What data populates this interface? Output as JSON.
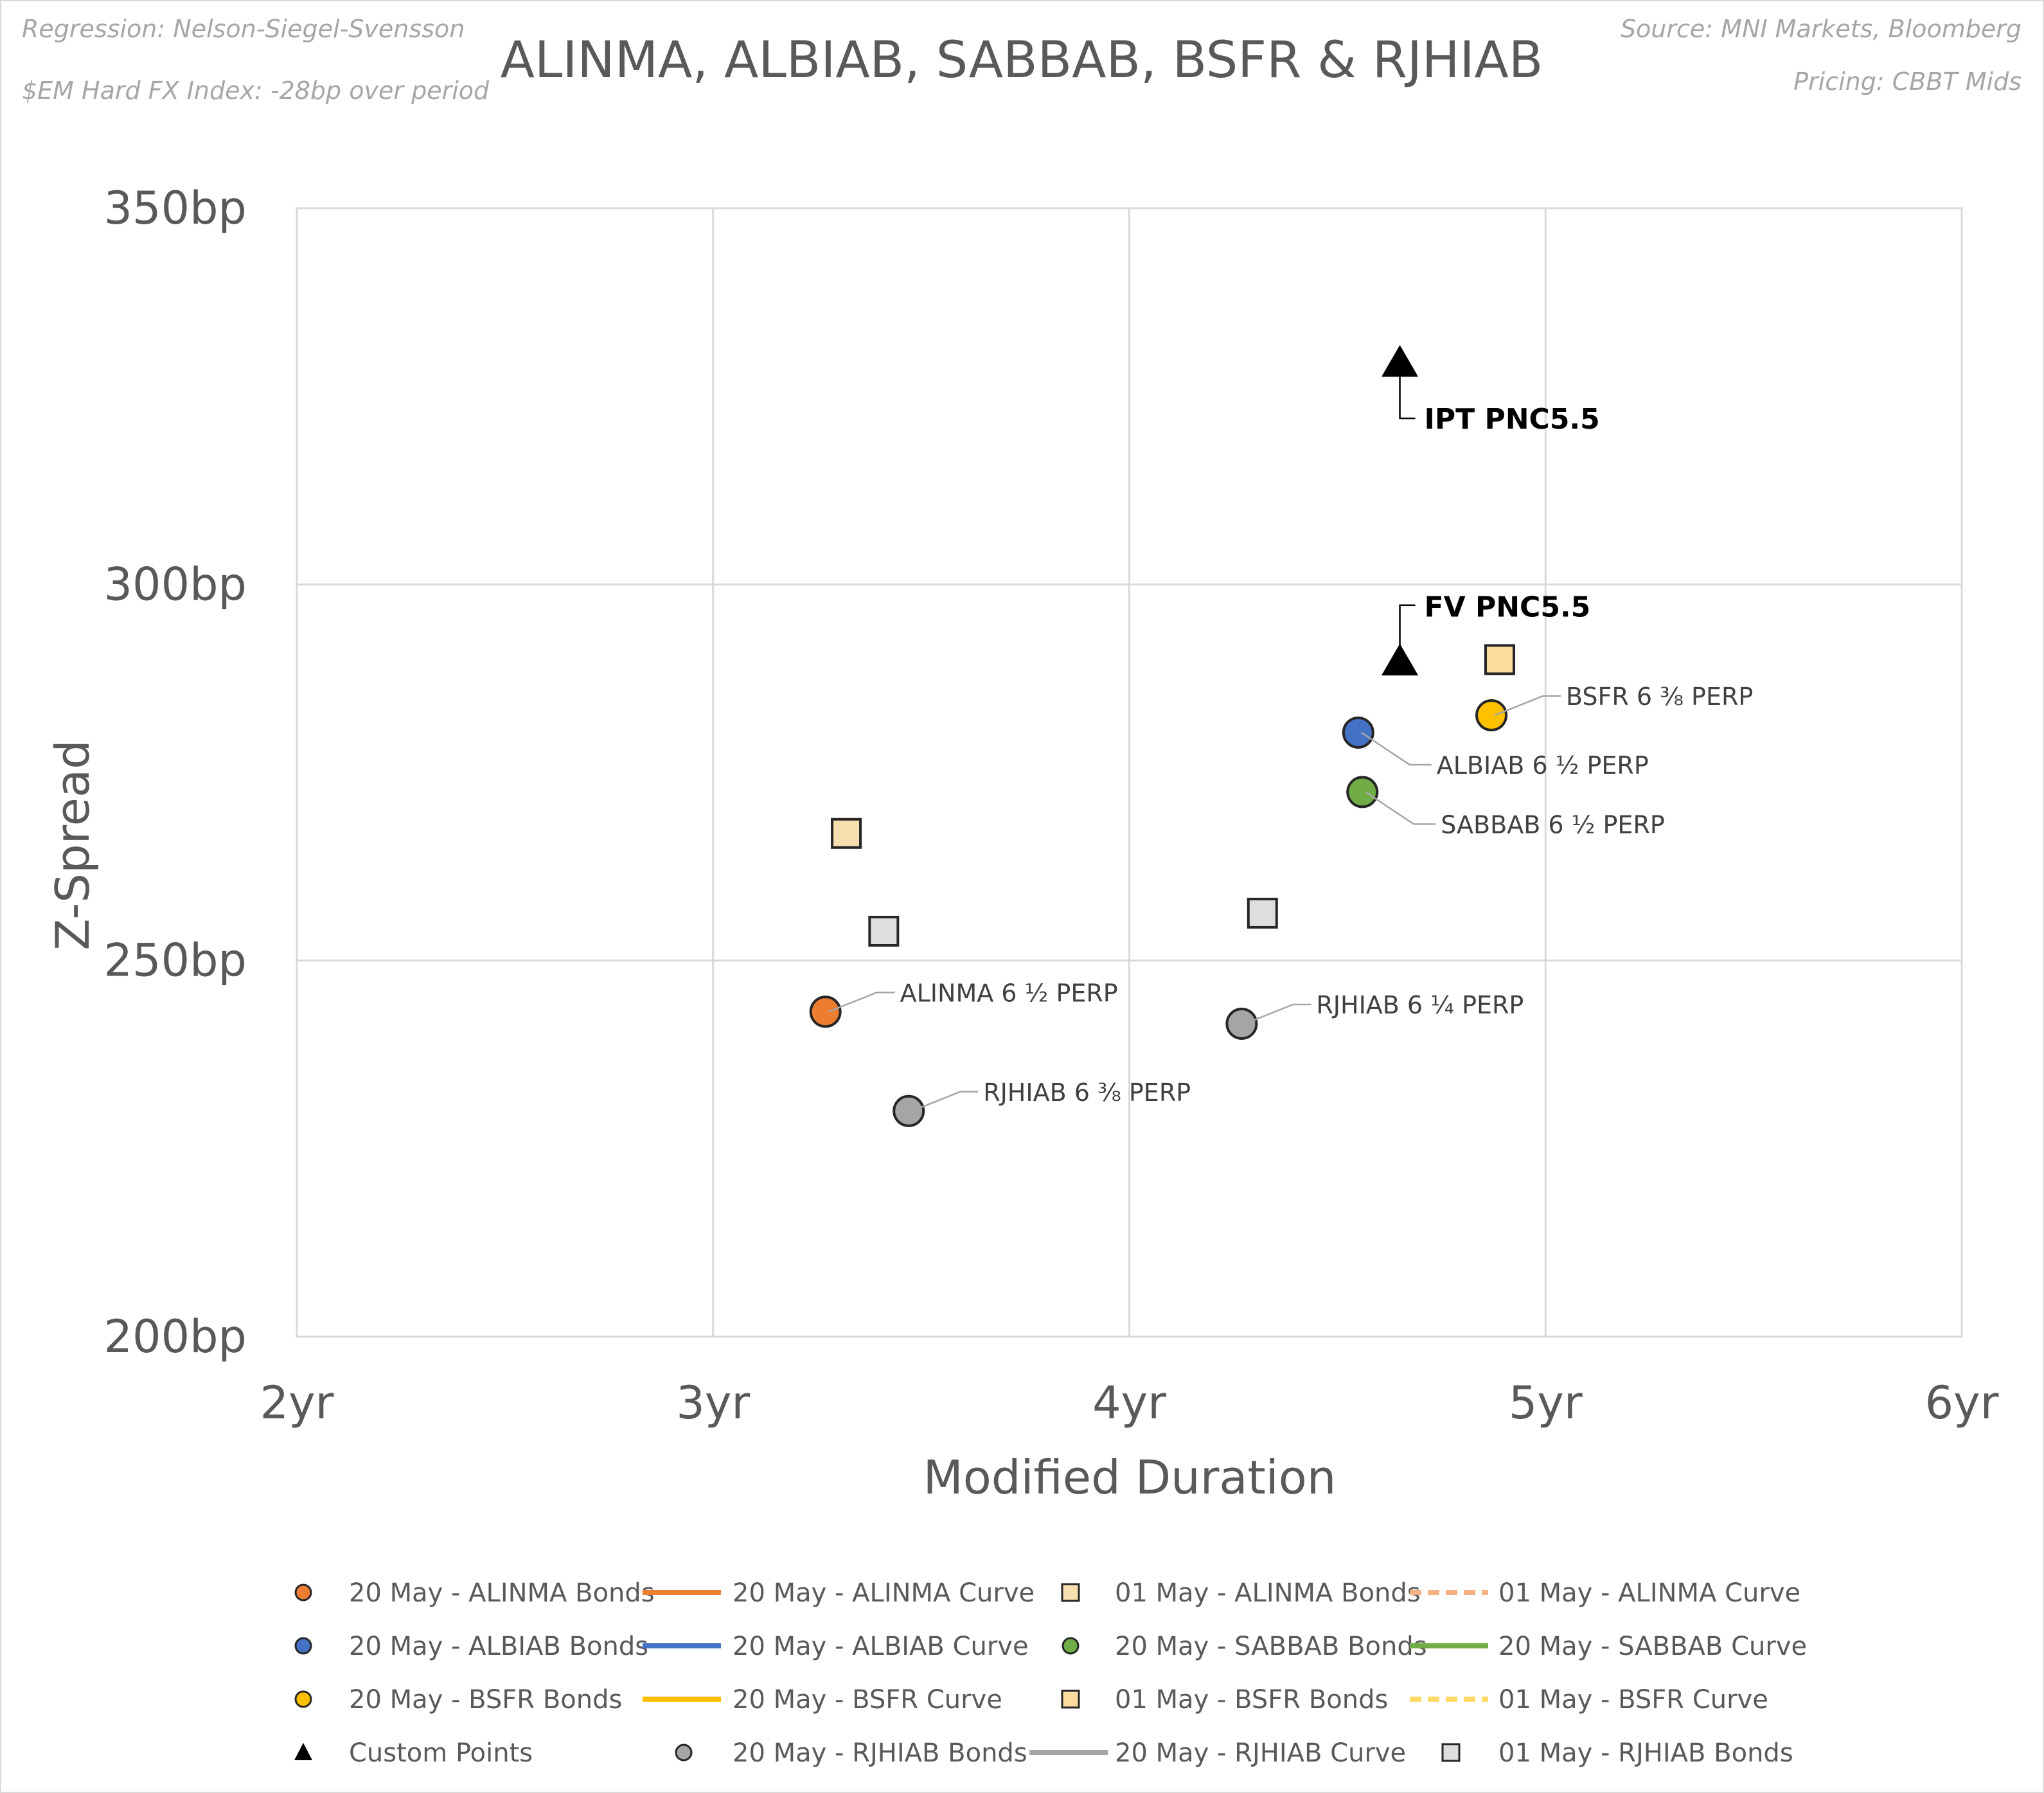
{
  "notes": {
    "regression": "Regression: Nelson-Siegel-Svensson",
    "index": "$EM Hard FX Index: -28bp over period",
    "source": "Source: MNI Markets, Bloomberg",
    "pricing": "Pricing: CBBT Mids"
  },
  "chart_data": {
    "type": "scatter",
    "title": "ALINMA, ALBIAB, SABBAB, BSFR & RJHIAB",
    "xlabel": "Modified Duration",
    "ylabel": "Z-Spread",
    "xlim": [
      2,
      6
    ],
    "ylim": [
      200,
      350
    ],
    "x_ticks": [
      2,
      3,
      4,
      5,
      6
    ],
    "y_ticks": [
      200,
      250,
      300,
      350
    ],
    "x_tick_labels": [
      "2yr",
      "3yr",
      "4yr",
      "5yr",
      "6yr"
    ],
    "y_tick_labels": [
      "200bp",
      "250bp",
      "300bp",
      "350bp"
    ],
    "grid": true,
    "series": [
      {
        "name": "01 May - ALINMA Bonds",
        "marker": "square",
        "color": "#f8dfb0",
        "points": [
          {
            "x": 3.32,
            "y": 266.9
          }
        ]
      },
      {
        "name": "01 May - BSFR Bonds",
        "marker": "square",
        "color": "#fbdb9e",
        "points": [
          {
            "x": 4.89,
            "y": 290.0
          }
        ]
      },
      {
        "name": "01 May - RJHIAB Bonds",
        "marker": "square",
        "color": "#dedede",
        "points": [
          {
            "x": 3.41,
            "y": 253.9
          },
          {
            "x": 4.32,
            "y": 256.3
          }
        ]
      },
      {
        "name": "Custom Points",
        "marker": "triangle",
        "color": "#000000",
        "points": [
          {
            "x": 4.65,
            "y": 329.5,
            "label": "IPT  PNC5.5"
          },
          {
            "x": 4.65,
            "y": 289.8,
            "label": "FV PNC5.5"
          }
        ]
      },
      {
        "name": "20 May - ALINMA Bonds",
        "marker": "circle",
        "color": "#ed7d31",
        "points": [
          {
            "x": 3.27,
            "y": 243.2,
            "label": "ALINMA 6 ½ PERP"
          }
        ]
      },
      {
        "name": "20 May - ALBIAB Bonds",
        "marker": "circle",
        "color": "#4472c4",
        "points": [
          {
            "x": 4.55,
            "y": 280.3,
            "label": "ALBIAB 6 ½ PERP"
          }
        ]
      },
      {
        "name": "20 May - SABBAB Bonds",
        "marker": "circle",
        "color": "#70ad47",
        "points": [
          {
            "x": 4.56,
            "y": 272.4,
            "label": "SABBAB 6 ½ PERP"
          }
        ]
      },
      {
        "name": "20 May - BSFR Bonds",
        "marker": "circle",
        "color": "#ffc000",
        "points": [
          {
            "x": 4.87,
            "y": 282.6,
            "label": "BSFR 6 ⅜ PERP"
          }
        ]
      },
      {
        "name": "20 May - RJHIAB Bonds",
        "marker": "circle",
        "color": "#a5a5a5",
        "points": [
          {
            "x": 4.27,
            "y": 241.6,
            "label": "RJHIAB 6 ¼ PERP"
          },
          {
            "x": 3.47,
            "y": 230.0,
            "label": "RJHIAB 6 ⅜ PERP"
          }
        ]
      }
    ],
    "legend": {
      "position": "bottom",
      "entries": [
        {
          "label": "20 May - ALINMA Bonds",
          "kind": "circle",
          "color": "#ed7d31"
        },
        {
          "label": "20 May - ALINMA Curve",
          "kind": "line",
          "color": "#ed7d31"
        },
        {
          "label": "01 May - ALINMA Bonds",
          "kind": "square",
          "color": "#f8dfb0"
        },
        {
          "label": "01 May - ALINMA Curve",
          "kind": "dash",
          "color": "#f4b183"
        },
        {
          "label": "20 May - ALBIAB Bonds",
          "kind": "circle",
          "color": "#4472c4"
        },
        {
          "label": "20 May - ALBIAB Curve",
          "kind": "line",
          "color": "#4472c4"
        },
        {
          "label": "20 May - SABBAB Bonds",
          "kind": "circle",
          "color": "#70ad47"
        },
        {
          "label": "20 May - SABBAB Curve",
          "kind": "line",
          "color": "#70ad47"
        },
        {
          "label": "20 May - BSFR Bonds",
          "kind": "circle",
          "color": "#ffc000"
        },
        {
          "label": "20 May - BSFR Curve",
          "kind": "line",
          "color": "#ffc000"
        },
        {
          "label": "01 May - BSFR Bonds",
          "kind": "square",
          "color": "#fbdb9e"
        },
        {
          "label": "01 May - BSFR Curve",
          "kind": "dash",
          "color": "#ffd966"
        },
        {
          "label": "Custom Points",
          "kind": "triangle",
          "color": "#000000"
        },
        {
          "label": "20 May - RJHIAB Bonds",
          "kind": "circle",
          "color": "#a5a5a5"
        },
        {
          "label": "20 May - RJHIAB Curve",
          "kind": "line",
          "color": "#a5a5a5"
        },
        {
          "label": "01 May - RJHIAB Bonds",
          "kind": "square",
          "color": "#dedede"
        }
      ]
    }
  }
}
